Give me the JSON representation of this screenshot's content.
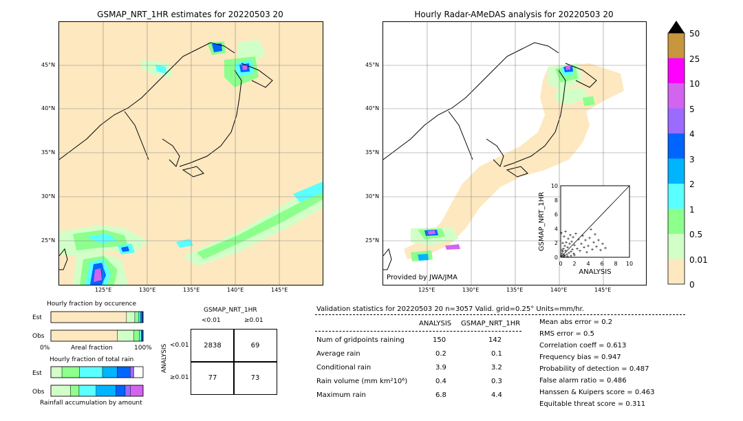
{
  "map_left": {
    "title": "GSMAP_NRT_1HR estimates for 20220503 20",
    "lat_labels": [
      "45°N",
      "40°N",
      "35°N",
      "30°N",
      "25°N"
    ],
    "lon_labels": [
      "125°E",
      "130°E",
      "135°E",
      "140°E",
      "145°E"
    ]
  },
  "map_right": {
    "title": "Hourly Radar-AMeDAS analysis for 20220503 20",
    "lat_labels": [
      "45°N",
      "40°N",
      "35°N",
      "30°N",
      "25°N"
    ],
    "lon_labels": [
      "125°E",
      "130°E",
      "135°E",
      "140°E",
      "145°E"
    ],
    "provider": "Provided by JWA/JMA"
  },
  "colorbar": {
    "labels": [
      "50",
      "25",
      "10",
      "5",
      "4",
      "3",
      "2",
      "1",
      "0.5",
      "0.01",
      "0"
    ],
    "colors": [
      "#c8963c",
      "#ff00ff",
      "#d264f0",
      "#9b6bff",
      "#0064ff",
      "#00b4ff",
      "#5affff",
      "#8cff8c",
      "#d2ffc8",
      "#fde8c0"
    ]
  },
  "chart_data": [
    {
      "type": "scatter",
      "title": "",
      "xlabel": "ANALYSIS",
      "ylabel": "GSMAP_NRT_1HR",
      "xlim": [
        0,
        10
      ],
      "ylim": [
        0,
        10
      ],
      "x_ticks": [
        "0",
        "2",
        "4",
        "6",
        "8",
        "10"
      ],
      "y_ticks": [
        "0",
        "2",
        "4",
        "6",
        "8",
        "10"
      ],
      "diagonal": true,
      "points": [
        [
          0.1,
          0.2
        ],
        [
          0.2,
          0.5
        ],
        [
          0.3,
          0.8
        ],
        [
          0.4,
          1.2
        ],
        [
          0.5,
          0.3
        ],
        [
          0.6,
          1.6
        ],
        [
          0.7,
          0.9
        ],
        [
          0.8,
          2.1
        ],
        [
          0.9,
          0.4
        ],
        [
          1.0,
          1.4
        ],
        [
          1.1,
          2.6
        ],
        [
          1.2,
          0.6
        ],
        [
          1.3,
          1.9
        ],
        [
          1.4,
          3.1
        ],
        [
          1.5,
          0.8
        ],
        [
          1.6,
          2.2
        ],
        [
          1.7,
          1.1
        ],
        [
          1.8,
          2.8
        ],
        [
          1.9,
          0.5
        ],
        [
          2.0,
          1.7
        ],
        [
          2.2,
          3.3
        ],
        [
          2.4,
          1.2
        ],
        [
          2.6,
          2.5
        ],
        [
          2.8,
          0.9
        ],
        [
          3.0,
          1.9
        ],
        [
          3.2,
          3.0
        ],
        [
          3.4,
          1.4
        ],
        [
          3.6,
          2.4
        ],
        [
          3.8,
          0.7
        ],
        [
          4.0,
          1.6
        ],
        [
          4.2,
          2.7
        ],
        [
          4.4,
          3.9
        ],
        [
          4.6,
          1.1
        ],
        [
          4.8,
          2.1
        ],
        [
          5.0,
          3.2
        ],
        [
          5.2,
          1.5
        ],
        [
          5.5,
          2.4
        ],
        [
          5.8,
          1.0
        ],
        [
          6.1,
          1.9
        ],
        [
          6.5,
          1.3
        ],
        [
          0.2,
          1.0
        ],
        [
          0.3,
          2.0
        ],
        [
          0.5,
          2.9
        ],
        [
          0.7,
          3.6
        ],
        [
          0.4,
          0.1
        ],
        [
          0.6,
          0.2
        ],
        [
          1.0,
          0.1
        ],
        [
          1.5,
          0.2
        ],
        [
          2.0,
          0.3
        ],
        [
          0.1,
          3.4
        ]
      ]
    },
    {
      "type": "bar",
      "title": "Hourly fraction by occurence",
      "categories": [
        "Est",
        "Obs"
      ],
      "x_ticks": [
        "0%",
        "100%"
      ],
      "xlabel": "Areal fraction",
      "stacked": true,
      "series_colors": [
        "#fde8c0",
        "#d2ffc8",
        "#8cff8c",
        "#5affff",
        "#00b4ff",
        "#0064ff",
        "#9b6bff"
      ],
      "values": [
        [
          0.82,
          0.09,
          0.04,
          0.02,
          0.015,
          0.01,
          0.005
        ],
        [
          0.72,
          0.18,
          0.06,
          0.02,
          0.01,
          0.007,
          0.003
        ]
      ]
    },
    {
      "type": "bar",
      "title": "Hourly fraction of total rain",
      "categories": [
        "Est",
        "Obs"
      ],
      "xlabel": "Rainfall accumulation by amount",
      "stacked": true,
      "series_colors": [
        "#d2ffc8",
        "#8cff8c",
        "#5affff",
        "#00b4ff",
        "#0064ff",
        "#9b6bff",
        "#d264f0"
      ],
      "values": [
        [
          0.12,
          0.19,
          0.25,
          0.16,
          0.14,
          0.04,
          0.0
        ],
        [
          0.23,
          0.1,
          0.2,
          0.23,
          0.11,
          0.06,
          0.15
        ]
      ]
    }
  ],
  "contingency": {
    "title": "GSMAP_NRT_1HR",
    "col_labels": [
      "<0.01",
      "≥0.01"
    ],
    "row_axis": "ANALYSIS",
    "row_labels": [
      "<0.01",
      "≥0.01"
    ],
    "cells": [
      "2838",
      "69",
      "77",
      "73"
    ]
  },
  "stats": {
    "header": "Validation statistics for 20220503 20  n=3057 Valid. grid=0.25° Units=mm/hr.",
    "col_analysis": "ANALYSIS",
    "col_gsmap": "GSMAP_NRT_1HR",
    "rows": [
      {
        "label": "Num of gridpoints raining",
        "analysis": "150",
        "gsmap": "142"
      },
      {
        "label": "Average rain",
        "analysis": "0.2",
        "gsmap": "0.1"
      },
      {
        "label": "Conditional rain",
        "analysis": "3.9",
        "gsmap": "3.2"
      },
      {
        "label": "Rain volume (mm km²10⁶)",
        "analysis": "0.4",
        "gsmap": "0.3"
      },
      {
        "label": "Maximum rain",
        "analysis": "6.8",
        "gsmap": "4.4"
      }
    ],
    "right": [
      "Mean abs error =    0.2",
      "RMS error =    0.5",
      "Correlation coeff =  0.613",
      "Frequency bias =  0.947",
      "Probability of detection =  0.487",
      "False alarm ratio =  0.486",
      "Hanssen & Kuipers score =  0.463",
      "Equitable threat score =  0.311"
    ]
  }
}
